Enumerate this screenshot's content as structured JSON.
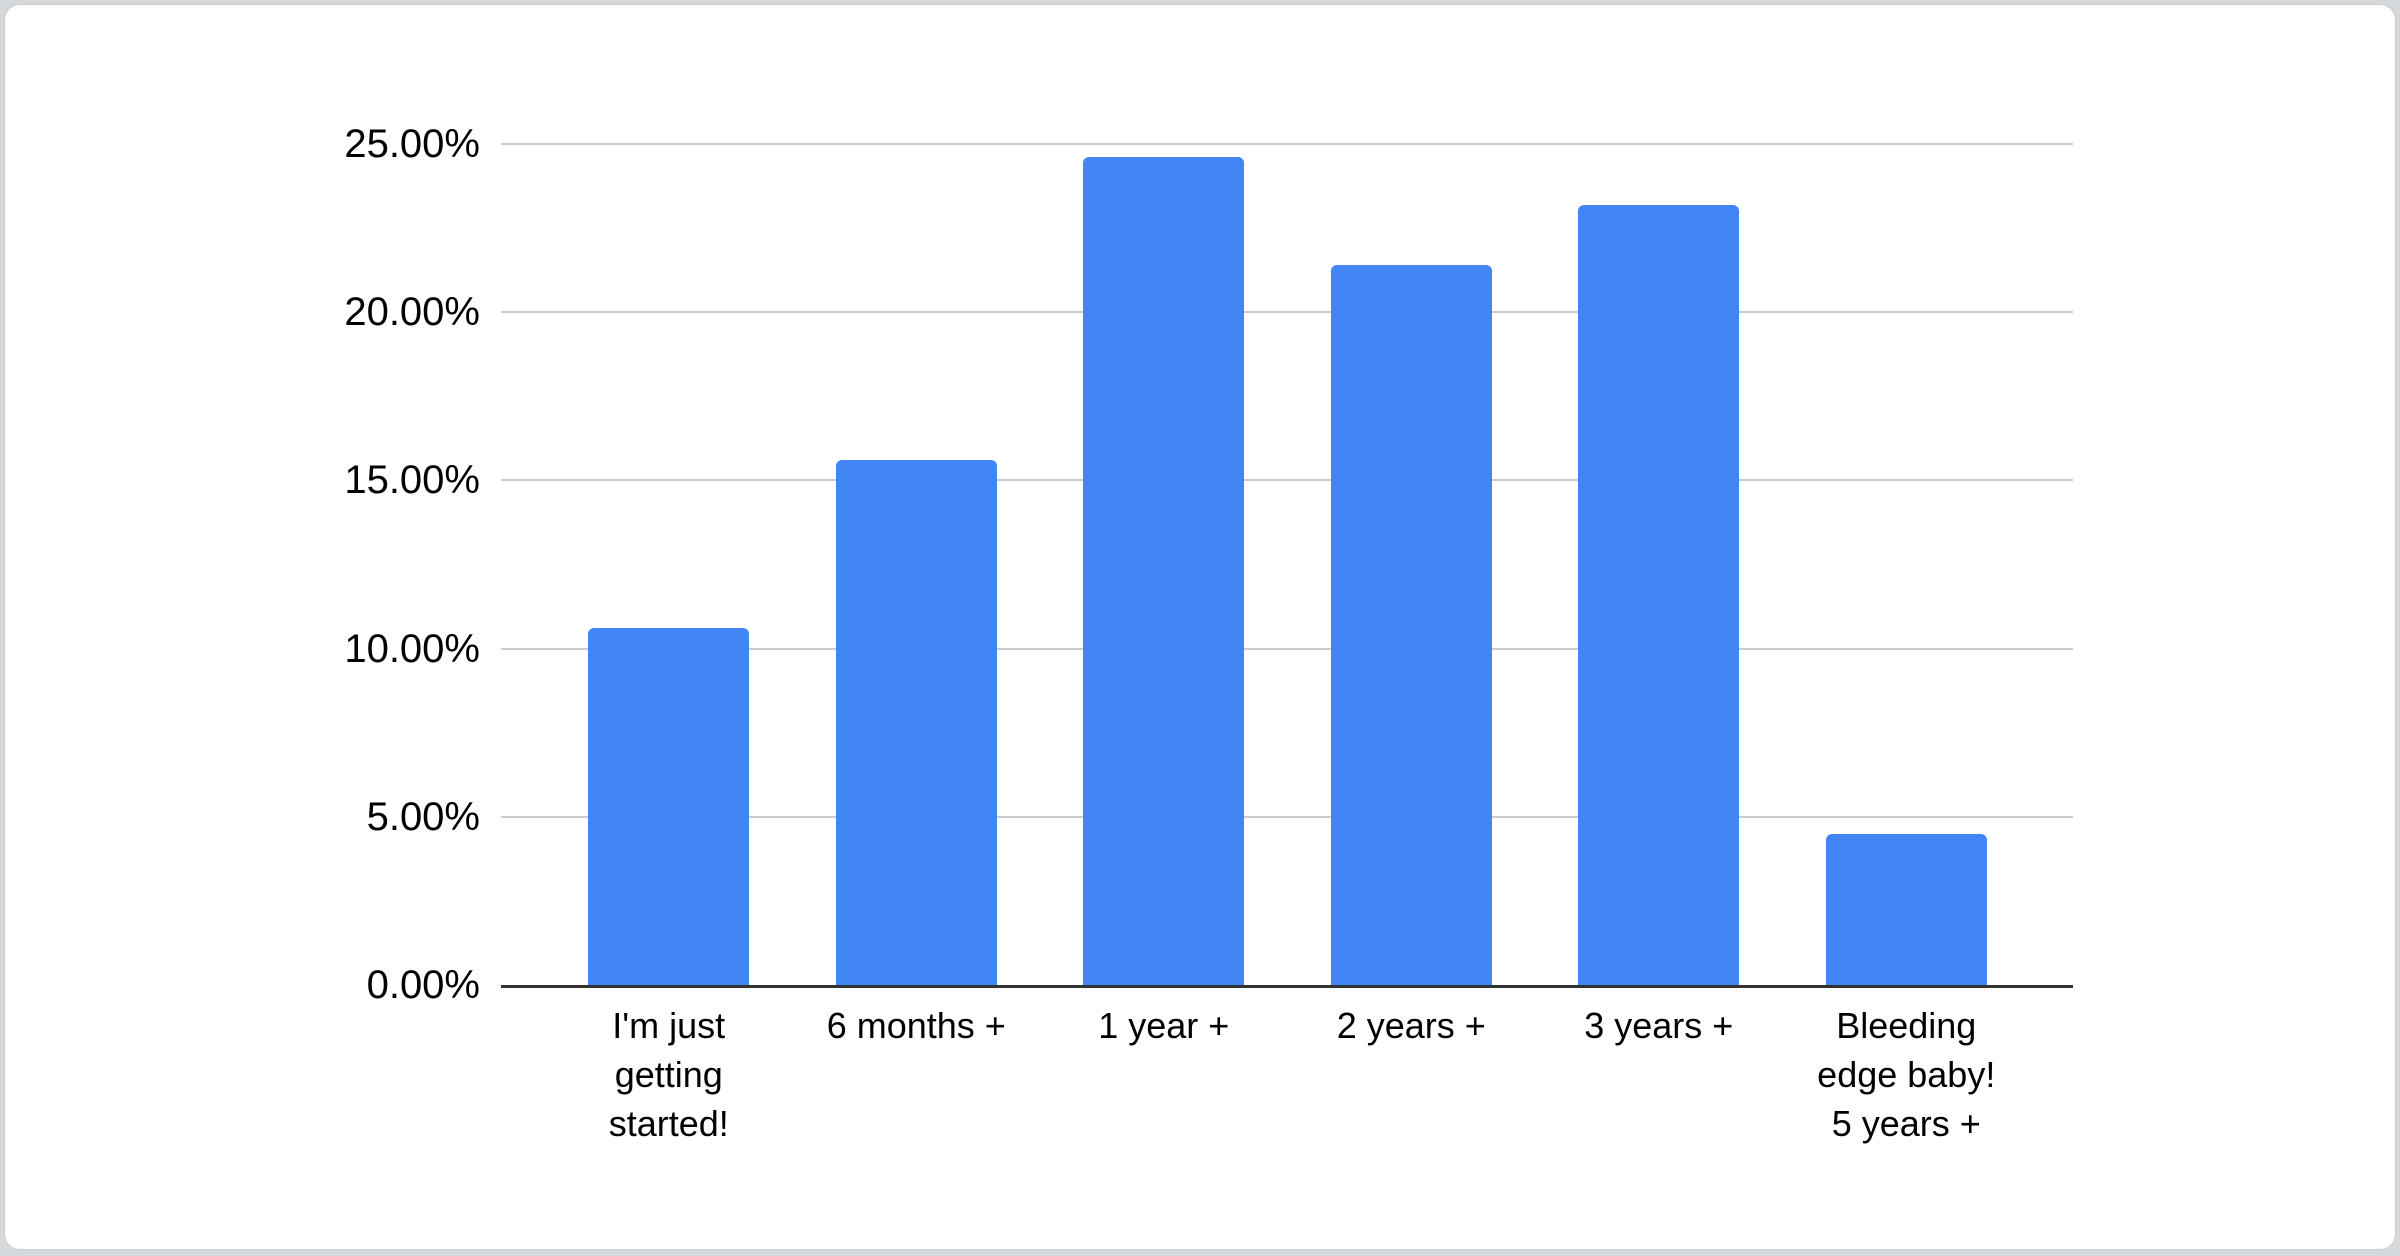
{
  "page": {
    "background_color": "#d6d9dc",
    "card_background_color": "#ffffff",
    "card_border_color": "#ccced2"
  },
  "chart_data": {
    "type": "bar",
    "title": "",
    "xlabel": "",
    "ylabel": "",
    "categories": [
      "I'm just getting started!",
      "6 months +",
      "1 year +",
      "2 years +",
      "3 years +",
      "Bleeding edge baby! 5 years +"
    ],
    "category_lines": [
      [
        "I'm just",
        "getting",
        "started!"
      ],
      [
        "6 months +"
      ],
      [
        "1 year +"
      ],
      [
        "2 years +"
      ],
      [
        "3 years +"
      ],
      [
        "Bleeding",
        "edge baby!",
        "5 years +"
      ]
    ],
    "values": [
      10.6,
      15.6,
      24.6,
      21.4,
      23.2,
      4.5
    ],
    "value_unit": "%",
    "ylim": [
      0,
      25
    ],
    "yticks": [
      {
        "value": 0,
        "label": "0.00%"
      },
      {
        "value": 5,
        "label": "5.00%"
      },
      {
        "value": 10,
        "label": "10.00%"
      },
      {
        "value": 15,
        "label": "15.00%"
      },
      {
        "value": 20,
        "label": "20.00%"
      },
      {
        "value": 25,
        "label": "25.00%"
      }
    ],
    "grid": true,
    "legend": "none",
    "bar_color": "#4285f4",
    "gridline_color": "#cccccc",
    "axis_line_color": "#333333",
    "text_color": "#000000"
  }
}
